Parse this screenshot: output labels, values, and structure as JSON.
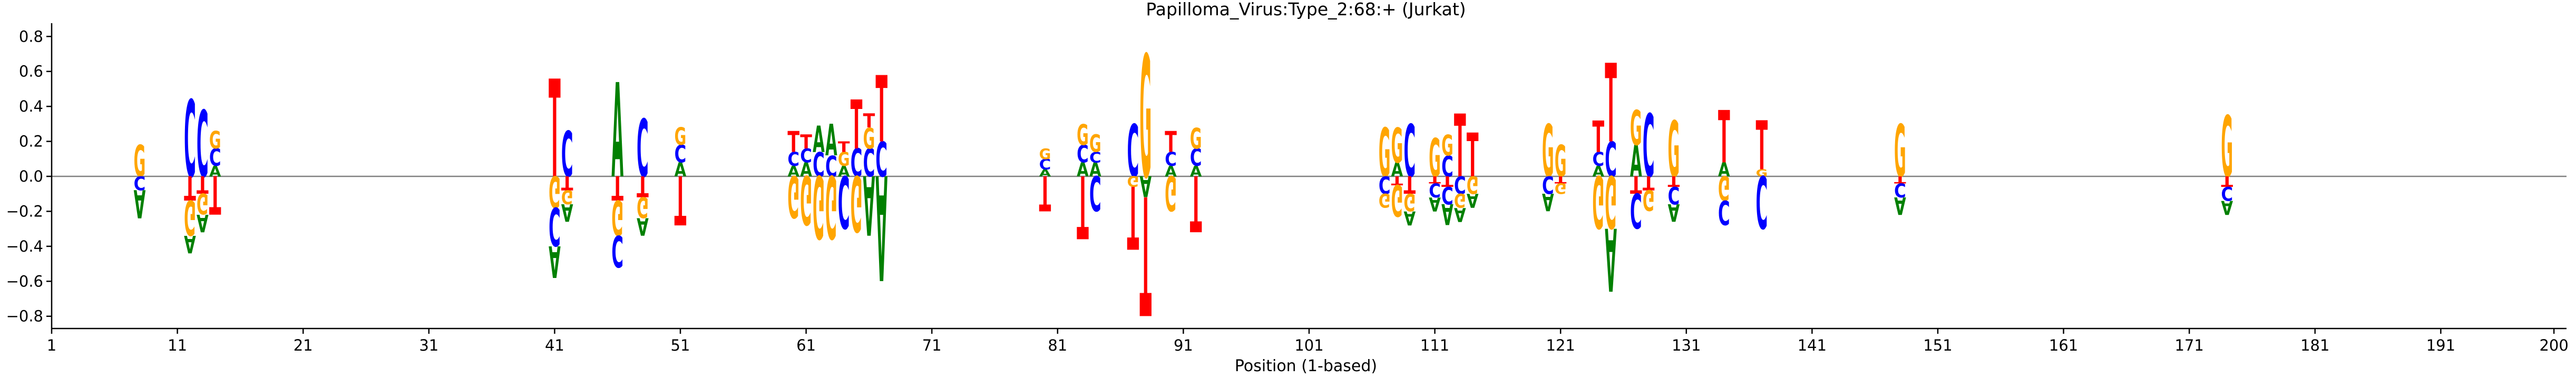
{
  "colors": {
    "A": "#008000",
    "C": "#0000ff",
    "G": "#ffa500",
    "T": "#ff0000",
    "axis": "#000000",
    "zero_line": "#808080"
  },
  "chart_data": {
    "type": "logo",
    "title": "Papilloma_Virus:Type_2:68:+  (Jurkat)",
    "xlabel": "Position (1-based)",
    "ylabel": "",
    "xlim": [
      1,
      201
    ],
    "ylim": [
      -0.87,
      0.87
    ],
    "x_ticks": [
      1,
      11,
      21,
      31,
      41,
      51,
      61,
      71,
      81,
      91,
      101,
      111,
      121,
      131,
      141,
      151,
      161,
      171,
      181,
      191,
      200
    ],
    "y_ticks": [
      -0.8,
      -0.6,
      -0.4,
      -0.2,
      0.0,
      0.2,
      0.4,
      0.6,
      0.8
    ],
    "y_tick_labels": [
      "−0.8",
      "−0.6",
      "−0.4",
      "−0.2",
      "0.0",
      "0.2",
      "0.4",
      "0.6",
      "0.8"
    ],
    "zero_line": true,
    "grid": false,
    "positions": [
      {
        "x": 8,
        "pos": [
          [
            "G",
            0.18
          ]
        ],
        "neg": [
          [
            "C",
            0.08
          ],
          [
            "A",
            0.16
          ]
        ]
      },
      {
        "x": 12,
        "pos": [
          [
            "C",
            0.44
          ]
        ],
        "neg": [
          [
            "T",
            0.14
          ],
          [
            "G",
            0.2
          ],
          [
            "A",
            0.1
          ]
        ]
      },
      {
        "x": 13,
        "pos": [
          [
            "C",
            0.38
          ]
        ],
        "neg": [
          [
            "T",
            0.1
          ],
          [
            "G",
            0.12
          ],
          [
            "A",
            0.1
          ]
        ]
      },
      {
        "x": 14,
        "pos": [
          [
            "A",
            0.06
          ],
          [
            "C",
            0.1
          ],
          [
            "G",
            0.1
          ]
        ],
        "neg": [
          [
            "T",
            0.22
          ]
        ]
      },
      {
        "x": 41,
        "pos": [
          [
            "T",
            0.56
          ]
        ],
        "neg": [
          [
            "G",
            0.18
          ],
          [
            "C",
            0.22
          ],
          [
            "A",
            0.18
          ]
        ]
      },
      {
        "x": 42,
        "pos": [
          [
            "C",
            0.26
          ]
        ],
        "neg": [
          [
            "T",
            0.08
          ],
          [
            "G",
            0.08
          ],
          [
            "A",
            0.1
          ]
        ]
      },
      {
        "x": 46,
        "pos": [
          [
            "A",
            0.54
          ]
        ],
        "neg": [
          [
            "T",
            0.14
          ],
          [
            "G",
            0.2
          ],
          [
            "C",
            0.18
          ]
        ]
      },
      {
        "x": 48,
        "pos": [
          [
            "C",
            0.33
          ]
        ],
        "neg": [
          [
            "T",
            0.12
          ],
          [
            "G",
            0.12
          ],
          [
            "A",
            0.1
          ]
        ]
      },
      {
        "x": 51,
        "pos": [
          [
            "A",
            0.08
          ],
          [
            "C",
            0.1
          ],
          [
            "G",
            0.1
          ]
        ],
        "neg": [
          [
            "T",
            0.28
          ]
        ]
      },
      {
        "x": 60,
        "pos": [
          [
            "A",
            0.06
          ],
          [
            "C",
            0.08
          ],
          [
            "T",
            0.12
          ]
        ],
        "neg": [
          [
            "G",
            0.24
          ]
        ]
      },
      {
        "x": 61,
        "pos": [
          [
            "A",
            0.08
          ],
          [
            "C",
            0.08
          ],
          [
            "T",
            0.08
          ]
        ],
        "neg": [
          [
            "G",
            0.28
          ]
        ]
      },
      {
        "x": 62,
        "pos": [
          [
            "C",
            0.14
          ],
          [
            "A",
            0.15
          ]
        ],
        "neg": [
          [
            "G",
            0.36
          ]
        ]
      },
      {
        "x": 63,
        "pos": [
          [
            "C",
            0.12
          ],
          [
            "A",
            0.18
          ]
        ],
        "neg": [
          [
            "G",
            0.36
          ]
        ]
      },
      {
        "x": 64,
        "pos": [
          [
            "A",
            0.06
          ],
          [
            "G",
            0.08
          ],
          [
            "T",
            0.06
          ]
        ],
        "neg": [
          [
            "C",
            0.3
          ]
        ]
      },
      {
        "x": 65,
        "pos": [
          [
            "C",
            0.16
          ],
          [
            "T",
            0.28
          ]
        ],
        "neg": [
          [
            "G",
            0.32
          ]
        ]
      },
      {
        "x": 66,
        "pos": [
          [
            "C",
            0.16
          ],
          [
            "G",
            0.12
          ],
          [
            "T",
            0.08
          ]
        ],
        "neg": [
          [
            "A",
            0.34
          ]
        ]
      },
      {
        "x": 67,
        "pos": [
          [
            "C",
            0.2
          ],
          [
            "T",
            0.38
          ]
        ],
        "neg": [
          [
            "A",
            0.6
          ]
        ]
      },
      {
        "x": 80,
        "pos": [
          [
            "A",
            0.04
          ],
          [
            "C",
            0.06
          ],
          [
            "G",
            0.06
          ]
        ],
        "neg": [
          [
            "T",
            0.2
          ]
        ]
      },
      {
        "x": 83,
        "pos": [
          [
            "A",
            0.08
          ],
          [
            "C",
            0.1
          ],
          [
            "G",
            0.12
          ]
        ],
        "neg": [
          [
            "T",
            0.36
          ]
        ]
      },
      {
        "x": 84,
        "pos": [
          [
            "A",
            0.08
          ],
          [
            "C",
            0.06
          ],
          [
            "G",
            0.1
          ]
        ],
        "neg": [
          [
            "C",
            0.2
          ]
        ]
      },
      {
        "x": 87,
        "pos": [
          [
            "C",
            0.3
          ]
        ],
        "neg": [
          [
            "G",
            0.06
          ],
          [
            "T",
            0.36
          ]
        ]
      },
      {
        "x": 88,
        "pos": [
          [
            "G",
            0.7
          ]
        ],
        "neg": [
          [
            "A",
            0.12
          ],
          [
            "T",
            0.68
          ]
        ]
      },
      {
        "x": 90,
        "pos": [
          [
            "A",
            0.06
          ],
          [
            "C",
            0.08
          ],
          [
            "T",
            0.12
          ]
        ],
        "neg": [
          [
            "G",
            0.2
          ]
        ]
      },
      {
        "x": 92,
        "pos": [
          [
            "A",
            0.06
          ],
          [
            "C",
            0.1
          ],
          [
            "G",
            0.12
          ]
        ],
        "neg": [
          [
            "T",
            0.32
          ]
        ]
      },
      {
        "x": 107,
        "pos": [
          [
            "G",
            0.28
          ]
        ],
        "neg": [
          [
            "C",
            0.1
          ],
          [
            "G",
            0.08
          ]
        ]
      },
      {
        "x": 108,
        "pos": [
          [
            "A",
            0.08
          ],
          [
            "G",
            0.2
          ]
        ],
        "neg": [
          [
            "T",
            0.05
          ],
          [
            "G",
            0.18
          ]
        ]
      },
      {
        "x": 109,
        "pos": [
          [
            "C",
            0.3
          ]
        ],
        "neg": [
          [
            "T",
            0.1
          ],
          [
            "G",
            0.1
          ],
          [
            "A",
            0.08
          ]
        ]
      },
      {
        "x": 111,
        "pos": [
          [
            "G",
            0.22
          ]
        ],
        "neg": [
          [
            "T",
            0.04
          ],
          [
            "C",
            0.08
          ],
          [
            "A",
            0.08
          ]
        ]
      },
      {
        "x": 112,
        "pos": [
          [
            "C",
            0.12
          ],
          [
            "G",
            0.12
          ]
        ],
        "neg": [
          [
            "T",
            0.06
          ],
          [
            "C",
            0.1
          ],
          [
            "A",
            0.12
          ]
        ]
      },
      {
        "x": 113,
        "pos": [
          [
            "T",
            0.36
          ]
        ],
        "neg": [
          [
            "C",
            0.1
          ],
          [
            "G",
            0.08
          ],
          [
            "A",
            0.08
          ]
        ]
      },
      {
        "x": 114,
        "pos": [
          [
            "T",
            0.25
          ]
        ],
        "neg": [
          [
            "G",
            0.1
          ],
          [
            "A",
            0.08
          ]
        ]
      },
      {
        "x": 120,
        "pos": [
          [
            "G",
            0.3
          ]
        ],
        "neg": [
          [
            "C",
            0.1
          ],
          [
            "A",
            0.1
          ]
        ]
      },
      {
        "x": 121,
        "pos": [
          [
            "G",
            0.18
          ]
        ],
        "neg": [
          [
            "T",
            0.04
          ],
          [
            "G",
            0.06
          ]
        ]
      },
      {
        "x": 124,
        "pos": [
          [
            "A",
            0.06
          ],
          [
            "C",
            0.08
          ],
          [
            "T",
            0.18
          ]
        ],
        "neg": [
          [
            "G",
            0.3
          ]
        ]
      },
      {
        "x": 125,
        "pos": [
          [
            "C",
            0.2
          ],
          [
            "T",
            0.45
          ]
        ],
        "neg": [
          [
            "G",
            0.3
          ],
          [
            "A",
            0.36
          ]
        ]
      },
      {
        "x": 127,
        "pos": [
          [
            "A",
            0.18
          ],
          [
            "G",
            0.2
          ]
        ],
        "neg": [
          [
            "T",
            0.1
          ],
          [
            "C",
            0.2
          ]
        ]
      },
      {
        "x": 128,
        "pos": [
          [
            "C",
            0.36
          ]
        ],
        "neg": [
          [
            "T",
            0.08
          ],
          [
            "G",
            0.12
          ]
        ]
      },
      {
        "x": 130,
        "pos": [
          [
            "G",
            0.32
          ]
        ],
        "neg": [
          [
            "T",
            0.06
          ],
          [
            "C",
            0.1
          ],
          [
            "A",
            0.1
          ]
        ]
      },
      {
        "x": 134,
        "pos": [
          [
            "A",
            0.08
          ],
          [
            "T",
            0.3
          ]
        ],
        "neg": [
          [
            "G",
            0.14
          ],
          [
            "C",
            0.14
          ]
        ]
      },
      {
        "x": 137,
        "pos": [
          [
            "G",
            0.04
          ],
          [
            "T",
            0.28
          ]
        ],
        "neg": [
          [
            "C",
            0.3
          ]
        ]
      },
      {
        "x": 148,
        "pos": [
          [
            "G",
            0.3
          ]
        ],
        "neg": [
          [
            "T",
            0.04
          ],
          [
            "C",
            0.08
          ],
          [
            "A",
            0.1
          ]
        ]
      },
      {
        "x": 174,
        "pos": [
          [
            "G",
            0.35
          ]
        ],
        "neg": [
          [
            "T",
            0.06
          ],
          [
            "C",
            0.08
          ],
          [
            "A",
            0.08
          ]
        ]
      }
    ]
  }
}
